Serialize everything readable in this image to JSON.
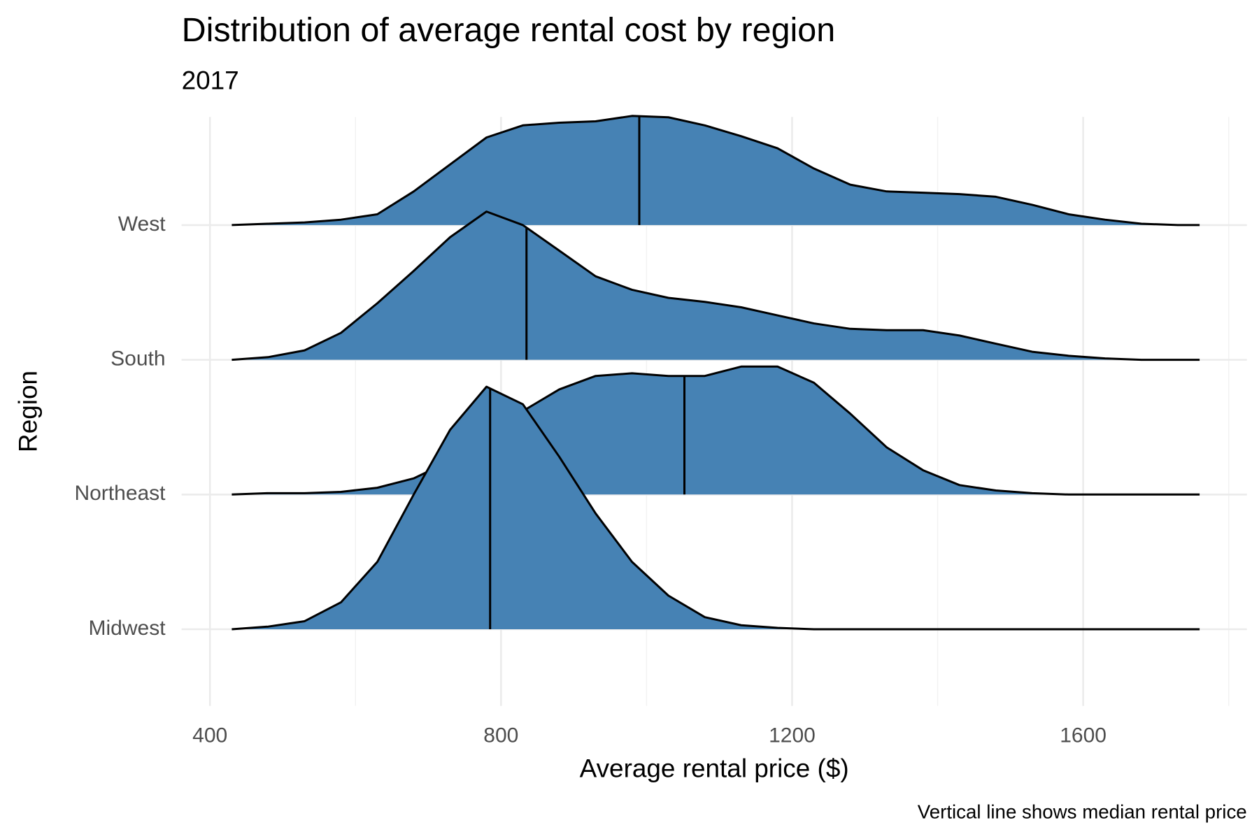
{
  "chart_data": {
    "type": "ridgeline",
    "title": "Distribution of average rental cost by region",
    "subtitle": "2017",
    "x_label": "Average rental price ($)",
    "y_label": "Region",
    "caption": "Vertical line shows median rental price",
    "color": "#4682b4",
    "line_color": "#000000",
    "grid": true,
    "xlim": [
      361,
      1825
    ],
    "xticks": [
      400,
      800,
      1200,
      1600
    ],
    "minor_xticks": [
      600,
      1000,
      1400,
      1800
    ],
    "x": [
      430,
      480,
      530,
      580,
      630,
      680,
      730,
      780,
      830,
      880,
      930,
      980,
      1030,
      1080,
      1130,
      1180,
      1230,
      1280,
      1330,
      1380,
      1430,
      1480,
      1530,
      1580,
      1630,
      1680,
      1730,
      1760
    ],
    "series": [
      {
        "name": "Midwest",
        "median": 785,
        "values": [
          0,
          0.02,
          0.06,
          0.2,
          0.5,
          1.0,
          1.48,
          1.8,
          1.67,
          1.28,
          0.86,
          0.5,
          0.25,
          0.09,
          0.03,
          0.01,
          0,
          0,
          0,
          0,
          0,
          0,
          0,
          0,
          0,
          0,
          0,
          0
        ]
      },
      {
        "name": "Northeast",
        "median": 1052,
        "values": [
          0,
          0.01,
          0.01,
          0.02,
          0.05,
          0.12,
          0.25,
          0.42,
          0.62,
          0.78,
          0.88,
          0.9,
          0.88,
          0.88,
          0.95,
          0.95,
          0.83,
          0.6,
          0.35,
          0.18,
          0.07,
          0.03,
          0.01,
          0,
          0,
          0,
          0,
          0
        ]
      },
      {
        "name": "South",
        "median": 835,
        "values": [
          0,
          0.02,
          0.07,
          0.2,
          0.42,
          0.66,
          0.91,
          1.1,
          1.0,
          0.81,
          0.62,
          0.52,
          0.46,
          0.43,
          0.39,
          0.33,
          0.27,
          0.23,
          0.22,
          0.22,
          0.18,
          0.12,
          0.06,
          0.03,
          0.01,
          0,
          0,
          0
        ]
      },
      {
        "name": "West",
        "median": 990,
        "values": [
          0,
          0.01,
          0.02,
          0.04,
          0.08,
          0.25,
          0.45,
          0.65,
          0.74,
          0.76,
          0.77,
          0.81,
          0.8,
          0.74,
          0.66,
          0.57,
          0.42,
          0.3,
          0.25,
          0.24,
          0.23,
          0.21,
          0.15,
          0.08,
          0.04,
          0.01,
          0,
          0
        ]
      }
    ]
  }
}
